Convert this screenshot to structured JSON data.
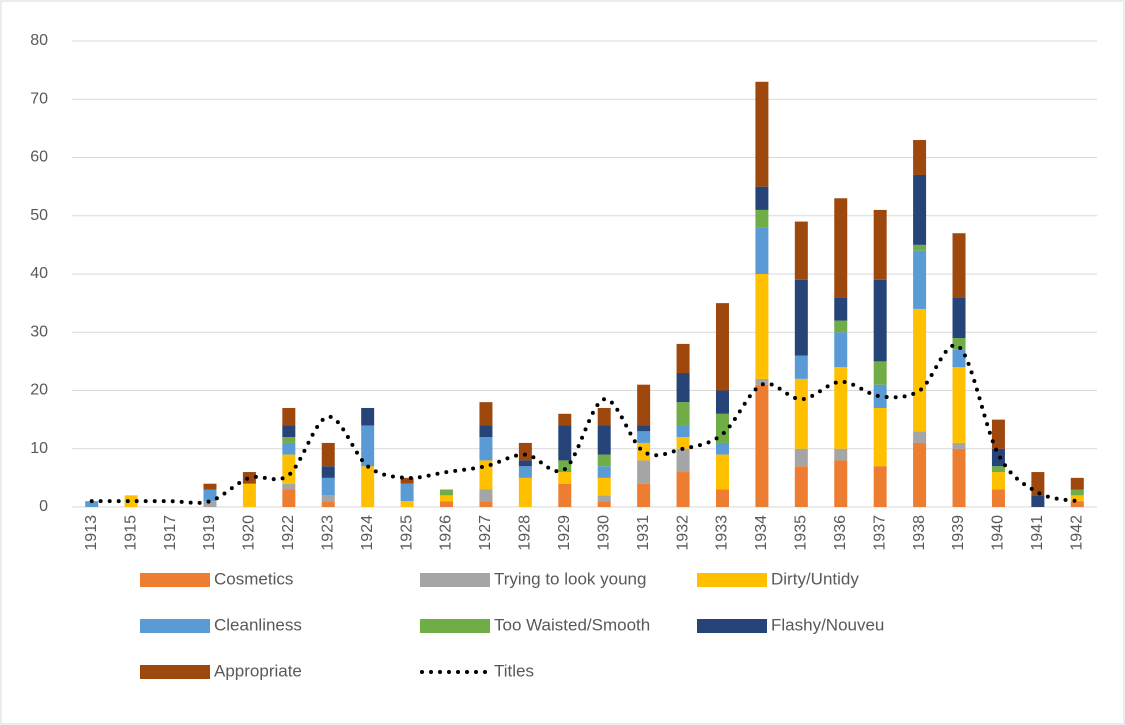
{
  "chart_data": {
    "type": "bar",
    "stacked": true,
    "categories": [
      "1913",
      "1915",
      "1917",
      "1919",
      "1920",
      "1922",
      "1923",
      "1924",
      "1925",
      "1926",
      "1927",
      "1928",
      "1929",
      "1930",
      "1931",
      "1932",
      "1933",
      "1934",
      "1935",
      "1936",
      "1937",
      "1938",
      "1939",
      "1940",
      "1941",
      "1942"
    ],
    "series": [
      {
        "name": "Cosmetics",
        "color": "#ed7d31",
        "values": [
          0,
          0,
          0,
          0,
          0,
          3,
          1,
          0,
          0,
          1,
          1,
          0,
          4,
          1,
          4,
          6,
          3,
          21,
          7,
          8,
          7,
          11,
          10,
          3,
          0,
          1
        ]
      },
      {
        "name": "Trying to look young",
        "color": "#a5a5a5",
        "values": [
          0,
          0,
          0,
          1,
          0,
          1,
          1,
          0,
          0,
          0,
          2,
          0,
          0,
          1,
          4,
          4,
          0,
          1,
          3,
          2,
          0,
          2,
          1,
          0,
          0,
          0
        ]
      },
      {
        "name": "Dirty/Untidy",
        "color": "#ffc000",
        "values": [
          0,
          2,
          0,
          0,
          4,
          5,
          0,
          7,
          1,
          1,
          5,
          5,
          2,
          3,
          3,
          2,
          6,
          18,
          12,
          14,
          10,
          21,
          13,
          3,
          0,
          1
        ]
      },
      {
        "name": "Cleanliness",
        "color": "#5b9bd5",
        "values": [
          1,
          0,
          0,
          2,
          0,
          2,
          3,
          7,
          3,
          0,
          4,
          2,
          0,
          2,
          2,
          2,
          2,
          8,
          4,
          6,
          4,
          10,
          3,
          0,
          0,
          0
        ]
      },
      {
        "name": "Too Waisted/Smooth",
        "color": "#70ad47",
        "values": [
          0,
          0,
          0,
          0,
          0,
          1,
          0,
          0,
          0,
          1,
          0,
          0,
          2,
          2,
          0,
          4,
          5,
          3,
          0,
          2,
          4,
          1,
          2,
          1,
          0,
          1
        ]
      },
      {
        "name": "Flashy/Nouveu",
        "color": "#264478",
        "values": [
          0,
          0,
          0,
          0,
          0,
          2,
          2,
          3,
          0,
          0,
          2,
          1,
          6,
          5,
          1,
          5,
          4,
          4,
          13,
          4,
          14,
          12,
          7,
          3,
          2,
          0
        ]
      },
      {
        "name": "Appropriate",
        "color": "#9e480e",
        "values": [
          0,
          0,
          0,
          1,
          2,
          3,
          4,
          0,
          1,
          0,
          4,
          3,
          2,
          3,
          7,
          5,
          15,
          18,
          10,
          17,
          12,
          6,
          11,
          5,
          4,
          2
        ]
      },
      {
        "name": "Titles",
        "type": "line",
        "color": "#000000",
        "values": [
          1,
          1,
          1,
          1,
          5,
          5.5,
          15.5,
          7,
          5,
          6,
          7,
          9,
          6.5,
          18.5,
          9.5,
          10,
          12.5,
          21,
          18.5,
          21.5,
          19,
          20,
          27.5,
          9,
          2.5,
          1
        ]
      }
    ],
    "ylim": [
      0,
      80
    ],
    "yticks": [
      0,
      10,
      20,
      30,
      40,
      50,
      60,
      70,
      80
    ],
    "grid": true
  }
}
